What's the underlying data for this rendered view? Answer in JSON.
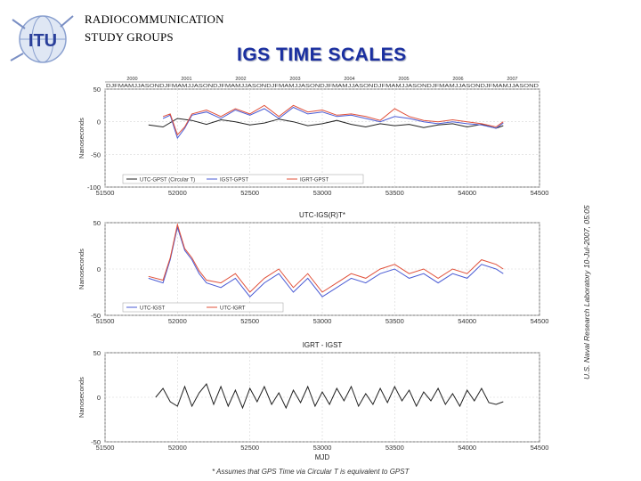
{
  "header": {
    "org_line1": "RADIOCOMMUNICATION",
    "org_line2": "STUDY GROUPS",
    "slide_title": "IGS TIME SCALES",
    "logo_text": "ITU"
  },
  "side_note": "U.S. Naval Research Laboratory 10-Jul-2007, 05:05",
  "footnote": "* Assumes that GPS Time via Circular T is equivalent to GPST",
  "colors": {
    "title": "#1a2fa0",
    "black_series": "#222222",
    "blue_series": "#4a5bd4",
    "red_series": "#e0503a"
  },
  "chart_data": [
    {
      "type": "line",
      "title": "",
      "xlabel": "",
      "ylabel": "Nanoseconds",
      "xlim": [
        51500,
        54500
      ],
      "ylim": [
        -100,
        50
      ],
      "xticks": [
        "51500",
        "52000",
        "52500",
        "53000",
        "53500",
        "54000",
        "54500"
      ],
      "yticks": [
        "50",
        "0",
        "-50",
        "-100"
      ],
      "grid": true,
      "legend": "bottom-left",
      "top_axis": {
        "years": [
          "2000",
          "2001",
          "2002",
          "2003",
          "2004",
          "2005",
          "2006",
          "2007"
        ],
        "months": "DJFMAMJJASONDJFMAMJJASONDJFMAMJJASONDJFMAMJJASONDJFMAMJJASONDJFMAMJJASONDJFMAMJJASONDJFMAMJJASOND"
      },
      "series": [
        {
          "name": "UTC-GPST (Circular T)",
          "color": "#222222",
          "x": [
            51800,
            51900,
            52000,
            52100,
            52200,
            52300,
            52400,
            52500,
            52600,
            52700,
            52800,
            52900,
            53000,
            53100,
            53200,
            53300,
            53400,
            53500,
            53600,
            53700,
            53800,
            53900,
            54000,
            54100,
            54200,
            54250
          ],
          "y": [
            -5,
            -8,
            5,
            2,
            -4,
            3,
            0,
            -5,
            -2,
            4,
            0,
            -6,
            -3,
            2,
            -4,
            -8,
            -3,
            -6,
            -4,
            -9,
            -5,
            -3,
            -8,
            -4,
            -10,
            -6
          ]
        },
        {
          "name": "IGST-GPST",
          "color": "#4a5bd4",
          "x": [
            51900,
            51950,
            52000,
            52050,
            52100,
            52200,
            52300,
            52400,
            52500,
            52600,
            52700,
            52800,
            52900,
            53000,
            53100,
            53200,
            53300,
            53400,
            53500,
            53600,
            53700,
            53800,
            53900,
            54000,
            54100,
            54200,
            54250
          ],
          "y": [
            5,
            10,
            -25,
            -10,
            10,
            15,
            5,
            18,
            10,
            20,
            5,
            22,
            12,
            15,
            8,
            10,
            5,
            0,
            8,
            5,
            0,
            -3,
            0,
            -3,
            -5,
            -10,
            -2
          ]
        },
        {
          "name": "IGRT-GPST",
          "color": "#e0503a",
          "x": [
            51900,
            51950,
            52000,
            52050,
            52100,
            52200,
            52300,
            52400,
            52500,
            52600,
            52700,
            52800,
            52900,
            53000,
            53100,
            53200,
            53300,
            53400,
            53500,
            53600,
            53700,
            53800,
            53900,
            54000,
            54100,
            54200,
            54250
          ],
          "y": [
            8,
            12,
            -20,
            -8,
            12,
            18,
            8,
            20,
            12,
            25,
            8,
            25,
            15,
            18,
            10,
            12,
            8,
            2,
            20,
            8,
            2,
            0,
            3,
            0,
            -3,
            -8,
            0
          ]
        }
      ]
    },
    {
      "type": "line",
      "title": "UTC-IGS(R)T*",
      "xlabel": "",
      "ylabel": "Nanoseconds",
      "xlim": [
        51500,
        54500
      ],
      "ylim": [
        -50,
        50
      ],
      "xticks": [
        "51500",
        "52000",
        "52500",
        "53000",
        "53500",
        "54000",
        "54500"
      ],
      "yticks": [
        "50",
        "0",
        "-50"
      ],
      "grid": true,
      "legend": "bottom-left",
      "series": [
        {
          "name": "UTC-IGST",
          "color": "#4a5bd4",
          "x": [
            51800,
            51900,
            51950,
            52000,
            52050,
            52100,
            52150,
            52200,
            52300,
            52400,
            52500,
            52600,
            52700,
            52800,
            52900,
            53000,
            53100,
            53200,
            53300,
            53400,
            53500,
            53600,
            53700,
            53800,
            53900,
            54000,
            54100,
            54200,
            54250
          ],
          "y": [
            -10,
            -15,
            10,
            45,
            20,
            10,
            -5,
            -15,
            -20,
            -10,
            -30,
            -15,
            -5,
            -25,
            -10,
            -30,
            -20,
            -10,
            -15,
            -5,
            0,
            -10,
            -5,
            -15,
            -5,
            -10,
            5,
            0,
            -5
          ]
        },
        {
          "name": "UTC-IGRT",
          "color": "#e0503a",
          "x": [
            51800,
            51900,
            51950,
            52000,
            52050,
            52100,
            52150,
            52200,
            52300,
            52400,
            52500,
            52600,
            52700,
            52800,
            52900,
            53000,
            53100,
            53200,
            53300,
            53400,
            53500,
            53600,
            53700,
            53800,
            53900,
            54000,
            54100,
            54200,
            54250
          ],
          "y": [
            -8,
            -12,
            12,
            48,
            22,
            12,
            -2,
            -12,
            -15,
            -5,
            -25,
            -10,
            0,
            -20,
            -5,
            -25,
            -15,
            -5,
            -10,
            0,
            5,
            -5,
            0,
            -10,
            0,
            -5,
            10,
            5,
            0
          ]
        }
      ]
    },
    {
      "type": "line",
      "title": "IGRT - IGST",
      "xlabel": "MJD",
      "ylabel": "Nanoseconds",
      "xlim": [
        51500,
        54500
      ],
      "ylim": [
        -50,
        50
      ],
      "xticks": [
        "51500",
        "52000",
        "52500",
        "53000",
        "53500",
        "54000",
        "54500"
      ],
      "yticks": [
        "50",
        "0",
        "-50"
      ],
      "grid": true,
      "series": [
        {
          "name": "",
          "color": "#222222",
          "x": [
            51850,
            51900,
            51950,
            52000,
            52050,
            52100,
            52150,
            52200,
            52250,
            52300,
            52350,
            52400,
            52450,
            52500,
            52550,
            52600,
            52650,
            52700,
            52750,
            52800,
            52850,
            52900,
            52950,
            53000,
            53050,
            53100,
            53150,
            53200,
            53250,
            53300,
            53350,
            53400,
            53450,
            53500,
            53550,
            53600,
            53650,
            53700,
            53750,
            53800,
            53850,
            53900,
            53950,
            54000,
            54050,
            54100,
            54150,
            54200,
            54250
          ],
          "y": [
            0,
            10,
            -5,
            -10,
            12,
            -10,
            5,
            15,
            -8,
            12,
            -10,
            8,
            -12,
            10,
            -5,
            12,
            -8,
            5,
            -12,
            8,
            -6,
            12,
            -10,
            6,
            -8,
            10,
            -4,
            12,
            -10,
            4,
            -8,
            10,
            -6,
            12,
            -4,
            8,
            -10,
            6,
            -4,
            10,
            -8,
            4,
            -10,
            8,
            -4,
            10,
            -6,
            -8,
            -5
          ]
        }
      ]
    }
  ]
}
